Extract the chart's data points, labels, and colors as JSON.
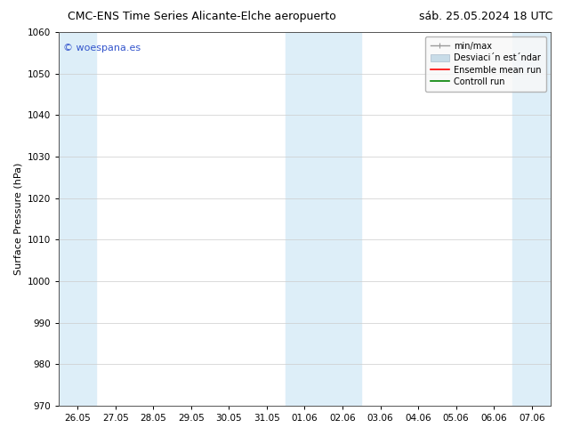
{
  "title_left": "CMC-ENS Time Series Alicante-Elche aeropuerto",
  "title_right": "sáb. 25.05.2024 18 UTC",
  "ylabel": "Surface Pressure (hPa)",
  "ylim": [
    970,
    1060
  ],
  "yticks": [
    970,
    980,
    990,
    1000,
    1010,
    1020,
    1030,
    1040,
    1050,
    1060
  ],
  "xtick_labels": [
    "26.05",
    "27.05",
    "28.05",
    "29.05",
    "30.05",
    "31.05",
    "01.06",
    "02.06",
    "03.06",
    "04.06",
    "05.06",
    "06.06",
    "07.06"
  ],
  "watermark": "© woespana.es",
  "bg_color": "#ffffff",
  "plot_bg_color": "#ffffff",
  "shaded_bands": [
    {
      "start": 0,
      "end": 1
    },
    {
      "start": 6,
      "end": 8
    },
    {
      "start": 12,
      "end": 13
    }
  ],
  "shaded_color": "#ddeef8",
  "legend_label_minmax": "min/max",
  "legend_label_std": "Desviaci´n est´ndar",
  "legend_label_ensemble": "Ensemble mean run",
  "legend_label_control": "Controll run",
  "legend_color_minmax": "#999999",
  "legend_color_std": "#c8dce8",
  "legend_color_ensemble": "#ff0000",
  "legend_color_control": "#008000",
  "grid_color": "#cccccc",
  "num_xticks": 13,
  "figsize": [
    6.34,
    4.9
  ],
  "dpi": 100,
  "title_fontsize": 9,
  "ylabel_fontsize": 8,
  "tick_fontsize": 7.5,
  "watermark_fontsize": 8,
  "legend_fontsize": 7
}
